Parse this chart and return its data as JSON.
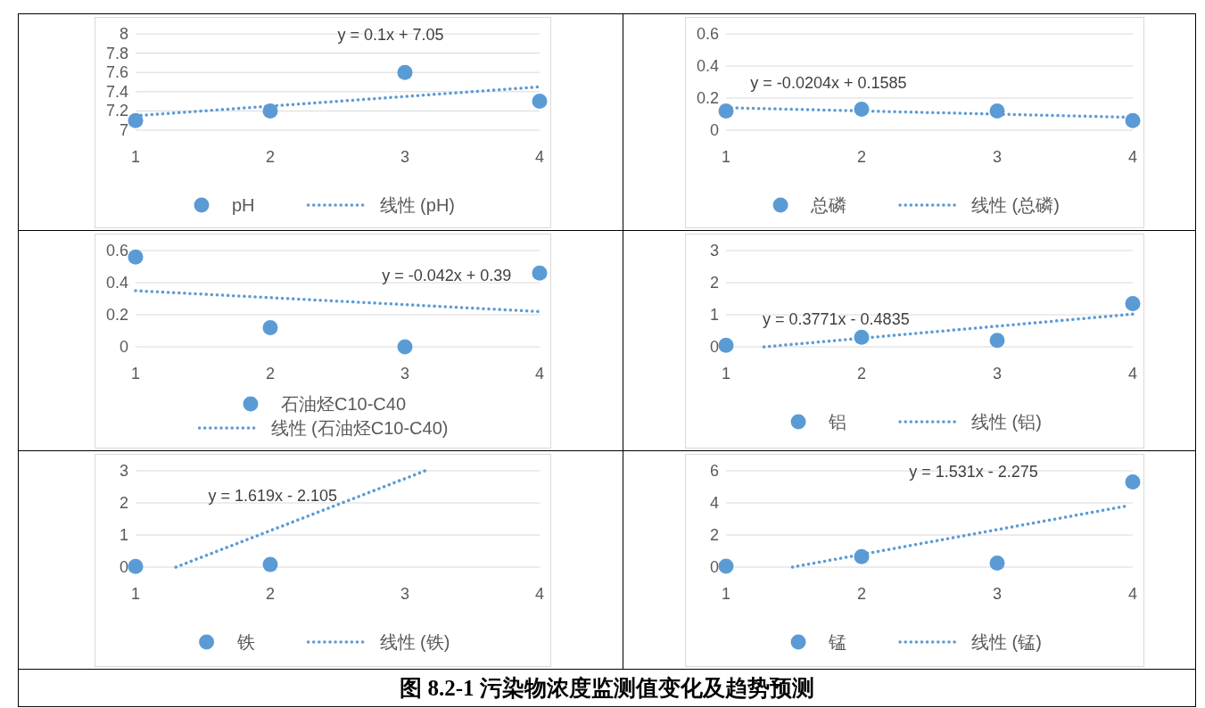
{
  "chart_data": [
    {
      "type": "scatter",
      "xlim": [
        1,
        4
      ],
      "xticks": [
        1,
        2,
        3,
        4
      ],
      "ylim": [
        7,
        8
      ],
      "yticks": [
        7,
        7.2,
        7.4,
        7.6,
        7.8,
        8
      ],
      "grid": "y",
      "legend": "bottom",
      "annotations": [
        "y = 0.1x + 7.05"
      ],
      "series": [
        {
          "name": "pH",
          "color": "#5b9bd5",
          "marker": "circle",
          "x": [
            1,
            2,
            3,
            4
          ],
          "values": [
            7.1,
            7.2,
            7.6,
            7.3
          ]
        },
        {
          "name": "线性 (pH)",
          "type": "line",
          "color": "#5b9bd5",
          "line_style": "dotted",
          "x": [
            1,
            4
          ],
          "values": [
            7.15,
            7.45
          ]
        }
      ]
    },
    {
      "type": "scatter",
      "xlim": [
        1,
        4
      ],
      "xticks": [
        1,
        2,
        3,
        4
      ],
      "ylim": [
        0,
        0.6
      ],
      "yticks": [
        0,
        0.2,
        0.4,
        0.6
      ],
      "grid": "y",
      "legend": "bottom",
      "annotations": [
        "y = -0.0204x + 0.1585"
      ],
      "series": [
        {
          "name": "总磷",
          "color": "#5b9bd5",
          "marker": "circle",
          "x": [
            1,
            2,
            3,
            4
          ],
          "values": [
            0.12,
            0.13,
            0.12,
            0.06
          ]
        },
        {
          "name": "线性 (总磷)",
          "type": "line",
          "color": "#5b9bd5",
          "line_style": "dotted",
          "x": [
            1,
            4
          ],
          "values": [
            0.14,
            0.08
          ]
        }
      ]
    },
    {
      "type": "scatter",
      "xlim": [
        1,
        4
      ],
      "xticks": [
        1,
        2,
        3,
        4
      ],
      "ylim": [
        0,
        0.6
      ],
      "yticks": [
        0,
        0.2,
        0.4,
        0.6
      ],
      "grid": "y",
      "legend": "bottom",
      "annotations": [
        "y = -0.042x + 0.39"
      ],
      "series": [
        {
          "name": "石油烃C10-C40",
          "color": "#5b9bd5",
          "marker": "circle",
          "x": [
            1,
            2,
            3,
            4
          ],
          "values": [
            0.56,
            0.12,
            0,
            0.46
          ]
        },
        {
          "name": "线性 (石油烃C10-C40)",
          "type": "line",
          "color": "#5b9bd5",
          "line_style": "dotted",
          "x": [
            1,
            4
          ],
          "values": [
            0.35,
            0.22
          ]
        }
      ]
    },
    {
      "type": "scatter",
      "xlim": [
        1,
        4
      ],
      "xticks": [
        1,
        2,
        3,
        4
      ],
      "ylim": [
        0,
        3
      ],
      "yticks": [
        0,
        1,
        2,
        3
      ],
      "grid": "y",
      "legend": "bottom",
      "annotations": [
        "y = 0.3771x - 0.4835"
      ],
      "series": [
        {
          "name": "铝",
          "color": "#5b9bd5",
          "marker": "circle",
          "x": [
            1,
            2,
            3,
            4
          ],
          "values": [
            0.05,
            0.3,
            0.2,
            1.35
          ]
        },
        {
          "name": "线性 (铝)",
          "type": "line",
          "color": "#5b9bd5",
          "line_style": "dotted",
          "x": [
            1.28,
            4
          ],
          "values": [
            0,
            1.02
          ]
        }
      ]
    },
    {
      "type": "scatter",
      "xlim": [
        1,
        4
      ],
      "xticks": [
        1,
        2,
        3,
        4
      ],
      "ylim": [
        0,
        3
      ],
      "yticks": [
        0,
        1,
        2,
        3
      ],
      "grid": "y",
      "legend": "bottom",
      "annotations": [
        "y = 1.619x - 2.105"
      ],
      "series": [
        {
          "name": "铁",
          "color": "#5b9bd5",
          "marker": "circle",
          "x": [
            1,
            2
          ],
          "values": [
            0.02,
            0.08
          ]
        },
        {
          "name": "线性 (铁)",
          "type": "line",
          "color": "#5b9bd5",
          "line_style": "dotted",
          "x": [
            1.3,
            3.15
          ],
          "values": [
            0,
            3
          ]
        }
      ]
    },
    {
      "type": "scatter",
      "xlim": [
        1,
        4
      ],
      "xticks": [
        1,
        2,
        3,
        4
      ],
      "ylim": [
        0,
        6
      ],
      "yticks": [
        0,
        2,
        4,
        6
      ],
      "grid": "y",
      "legend": "bottom",
      "annotations": [
        "y = 1.531x - 2.275"
      ],
      "series": [
        {
          "name": "锰",
          "color": "#5b9bd5",
          "marker": "circle",
          "x": [
            1,
            2,
            3,
            4
          ],
          "values": [
            0.05,
            0.65,
            0.25,
            5.3
          ]
        },
        {
          "name": "线性 (锰)",
          "type": "line",
          "color": "#5b9bd5",
          "line_style": "dotted",
          "x": [
            1.49,
            3.95
          ],
          "values": [
            0,
            3.8
          ]
        }
      ]
    },
    {
      "type": "other",
      "title": "图 8.2-1  污染物浓度监测值变化及趋势预测"
    }
  ]
}
